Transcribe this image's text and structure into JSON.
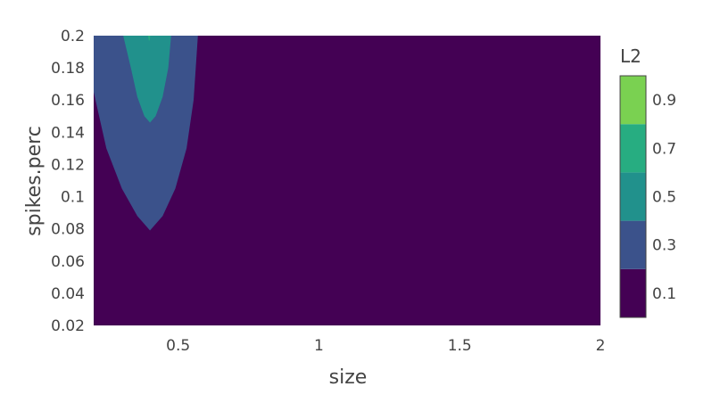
{
  "chart_data": {
    "type": "contour",
    "xlabel": "size",
    "ylabel": "spikes.perc",
    "xlim": [
      0.2,
      2
    ],
    "ylim": [
      0.02,
      0.2
    ],
    "x_ticks": [
      0.5,
      1,
      1.5,
      2
    ],
    "x_tick_labels": [
      "0.5",
      "1",
      "1.5",
      "2"
    ],
    "y_ticks": [
      0.02,
      0.04,
      0.06,
      0.08,
      0.1,
      0.12,
      0.14,
      0.16,
      0.18,
      0.2
    ],
    "y_tick_labels": [
      "0.02",
      "0.04",
      "0.06",
      "0.08",
      "0.1",
      "0.12",
      "0.14",
      "0.16",
      "0.18",
      "0.2"
    ],
    "grid": false,
    "colorscale": "viridis",
    "colorbar": {
      "title": "L2",
      "levels": [
        0,
        0.2,
        0.4,
        0.6,
        0.8,
        1.0
      ],
      "colors": [
        "#440154",
        "#3b528b",
        "#21918c",
        "#27ad81",
        "#7ad151",
        "#fde725"
      ],
      "ticks": [
        0.1,
        0.3,
        0.5,
        0.7,
        0.9
      ],
      "tick_labels": [
        "0.1",
        "0.3",
        "0.5",
        "0.7",
        "0.9"
      ]
    },
    "contours": [
      {
        "level": 0.2,
        "color": "#3b528b",
        "points": [
          [
            0.2,
            0.2
          ],
          [
            0.57,
            0.2
          ],
          [
            0.555,
            0.16
          ],
          [
            0.53,
            0.13
          ],
          [
            0.49,
            0.105
          ],
          [
            0.445,
            0.088
          ],
          [
            0.4,
            0.079
          ],
          [
            0.355,
            0.088
          ],
          [
            0.3,
            0.105
          ],
          [
            0.245,
            0.13
          ],
          [
            0.2,
            0.165
          ]
        ]
      },
      {
        "level": 0.4,
        "color": "#21918c",
        "points": [
          [
            0.305,
            0.2
          ],
          [
            0.475,
            0.2
          ],
          [
            0.465,
            0.18
          ],
          [
            0.445,
            0.162
          ],
          [
            0.42,
            0.15
          ],
          [
            0.4,
            0.146
          ],
          [
            0.38,
            0.15
          ],
          [
            0.355,
            0.162
          ],
          [
            0.332,
            0.18
          ]
        ]
      },
      {
        "level": 0.6,
        "color": "#27ad81",
        "points": [
          [
            0.393,
            0.2
          ],
          [
            0.401,
            0.2
          ],
          [
            0.399,
            0.197
          ],
          [
            0.396,
            0.197
          ]
        ]
      }
    ]
  }
}
